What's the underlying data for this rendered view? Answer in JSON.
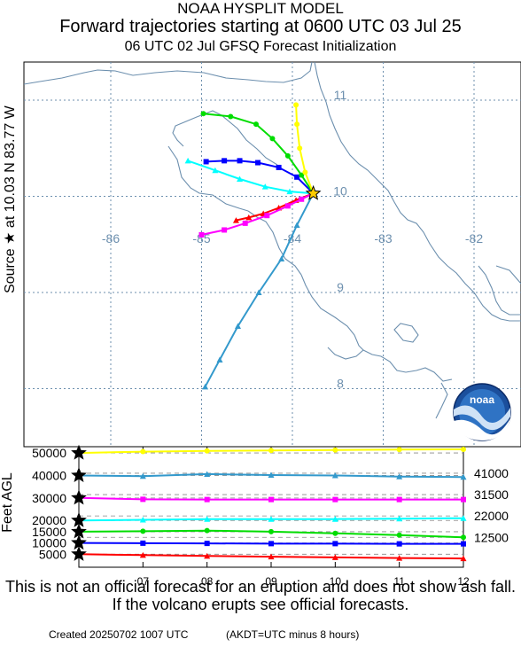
{
  "header": {
    "line1": "NOAA HYSPLIT MODEL",
    "line2": "Forward trajectories starting at 0600 UTC 03 Jul 25",
    "line3": "06 UTC 02 Jul    GFSQ  Forecast Initialization"
  },
  "side_label": "Source ★ at   10.03 N   83.77 W",
  "height_axis_label": "Feet AGL",
  "footer": {
    "disclaimer": "This is not an official forecast for an eruption and does not show ash fall. If the volcano erupts see official forecasts.",
    "created": "Created 20250702 1007 UTC",
    "timezone": "(AKDT=UTC minus 8 hours)"
  },
  "logo": {
    "text": "noaa"
  },
  "chart_data": [
    {
      "type": "line",
      "name": "trajectory-map",
      "lon_labels": [
        "-86",
        "-85",
        "-84",
        "-83",
        "-82"
      ],
      "lat_labels": [
        "11",
        "10",
        "9",
        "8"
      ],
      "lon_range": [
        -86.9,
        -81.6
      ],
      "lat_range": [
        7.0,
        11.3
      ],
      "source": {
        "lat": 10.03,
        "lon": -83.77,
        "marker": "star"
      },
      "series": [
        {
          "height_ft": 5000,
          "color": "#ff0000",
          "marker": "triangle",
          "points": [
            [
              -83.77,
              10.03
            ],
            [
              -83.96,
              9.96
            ],
            [
              -84.15,
              9.88
            ],
            [
              -84.32,
              9.82
            ],
            [
              -84.48,
              9.78
            ],
            [
              -84.62,
              9.75
            ]
          ]
        },
        {
          "height_ft": 10000,
          "color": "#0000ff",
          "marker": "square",
          "points": [
            [
              -83.77,
              10.03
            ],
            [
              -83.95,
              10.2
            ],
            [
              -84.15,
              10.3
            ],
            [
              -84.38,
              10.35
            ],
            [
              -84.58,
              10.37
            ],
            [
              -84.75,
              10.37
            ],
            [
              -84.95,
              10.36
            ]
          ]
        },
        {
          "height_ft": 15000,
          "color": "#00dd00",
          "marker": "circle",
          "points": [
            [
              -83.77,
              10.03
            ],
            [
              -83.9,
              10.22
            ],
            [
              -84.05,
              10.42
            ],
            [
              -84.22,
              10.6
            ],
            [
              -84.4,
              10.75
            ],
            [
              -84.68,
              10.83
            ],
            [
              -84.98,
              10.86
            ]
          ]
        },
        {
          "height_ft": 20000,
          "color": "#00ffff",
          "marker": "triangle",
          "points": [
            [
              -83.77,
              10.03
            ],
            [
              -84.03,
              10.05
            ],
            [
              -84.3,
              10.1
            ],
            [
              -84.58,
              10.18
            ],
            [
              -84.85,
              10.27
            ],
            [
              -85.15,
              10.37
            ]
          ]
        },
        {
          "height_ft": 30000,
          "color": "#ff00ff",
          "marker": "square",
          "points": [
            [
              -83.77,
              10.03
            ],
            [
              -83.9,
              9.97
            ],
            [
              -84.05,
              9.9
            ],
            [
              -84.28,
              9.8
            ],
            [
              -84.52,
              9.72
            ],
            [
              -84.75,
              9.65
            ],
            [
              -85.0,
              9.6
            ]
          ]
        },
        {
          "height_ft": 40000,
          "color": "#3399cc",
          "marker": "triangle",
          "points": [
            [
              -83.77,
              10.03
            ],
            [
              -83.95,
              9.7
            ],
            [
              -84.12,
              9.35
            ],
            [
              -84.37,
              9.0
            ],
            [
              -84.6,
              8.65
            ],
            [
              -84.8,
              8.3
            ],
            [
              -84.96,
              8.02
            ]
          ]
        },
        {
          "height_ft": 50000,
          "color": "#ffff00",
          "marker": "circle",
          "points": [
            [
              -83.77,
              10.03
            ],
            [
              -83.86,
              10.25
            ],
            [
              -83.92,
              10.5
            ],
            [
              -83.95,
              10.75
            ],
            [
              -83.96,
              10.95
            ]
          ]
        }
      ]
    },
    {
      "type": "line",
      "name": "height-time-series",
      "x_labels": [
        "07",
        "08",
        "09",
        "10",
        "11",
        "12"
      ],
      "y_labels": [
        "5000",
        "10000",
        "15000",
        "20000",
        "30000",
        "40000",
        "50000"
      ],
      "right_labels": [
        "41000",
        "31500",
        "22000",
        "12500"
      ],
      "xlim": [
        6,
        12
      ],
      "ylim": [
        0,
        52000
      ],
      "series": [
        {
          "color": "#ff0000",
          "marker": "triangle",
          "values": [
            5000,
            4600,
            4200,
            3900,
            3600,
            3300,
            3100
          ]
        },
        {
          "color": "#0000ff",
          "marker": "square",
          "values": [
            10000,
            9900,
            9800,
            9700,
            9700,
            9600,
            9600
          ]
        },
        {
          "color": "#00dd00",
          "marker": "circle",
          "values": [
            15000,
            15200,
            15500,
            15000,
            14300,
            13500,
            12500
          ]
        },
        {
          "color": "#00ffff",
          "marker": "triangle",
          "values": [
            20000,
            20300,
            20600,
            20600,
            20600,
            20800,
            21000
          ]
        },
        {
          "color": "#ff00ff",
          "marker": "square",
          "values": [
            30000,
            29400,
            29300,
            29300,
            29300,
            29300,
            29300
          ]
        },
        {
          "color": "#3399cc",
          "marker": "triangle",
          "values": [
            40000,
            39700,
            40600,
            40200,
            40000,
            39500,
            39300
          ]
        },
        {
          "color": "#ffff00",
          "marker": "circle",
          "values": [
            50000,
            50600,
            50900,
            51100,
            51300,
            51500,
            51600
          ]
        }
      ]
    }
  ]
}
